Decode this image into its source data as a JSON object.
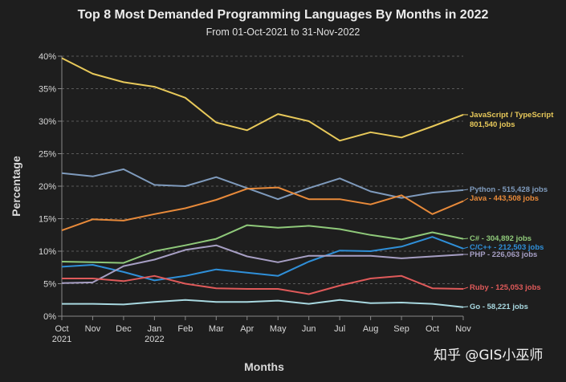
{
  "title": "Top 8 Most Demanded Programming Languages By Months in 2022",
  "subtitle": "From 01-Oct-2021 to 31-Nov-2022",
  "watermark": "知乎 @GIS小巫师",
  "chart_data": {
    "type": "line",
    "title": "Top 8 Most Demanded Programming Languages By Months in 2022",
    "subtitle": "From 01-Oct-2021 to 31-Nov-2022",
    "xlabel": "Months",
    "ylabel": "Percentage",
    "ylim": [
      0,
      40
    ],
    "yticks": [
      "0%",
      "5%",
      "10%",
      "15%",
      "20%",
      "25%",
      "30%",
      "35%",
      "40%"
    ],
    "ytick_values": [
      0,
      5,
      10,
      15,
      20,
      25,
      30,
      35,
      40
    ],
    "categories": [
      "Oct",
      "Nov",
      "Dec",
      "Jan",
      "Feb",
      "Mar",
      "Apr",
      "May",
      "Jun",
      "Jul",
      "Aug",
      "Sep",
      "Oct",
      "Nov"
    ],
    "category_sublabels": [
      "2021",
      "",
      "",
      "2022",
      "",
      "",
      "",
      "",
      "",
      "",
      "",
      "",
      "",
      ""
    ],
    "grid": true,
    "legend": "end-of-line labels (right)",
    "series": [
      {
        "name": "JavaScript / TypeScript",
        "jobs": "801,540 jobs",
        "color": "#e8c95a",
        "values": [
          39.7,
          37.3,
          36.0,
          35.3,
          33.6,
          29.8,
          28.6,
          31.1,
          30.0,
          27.0,
          28.3,
          27.5,
          29.2,
          31.0
        ]
      },
      {
        "name": "Python",
        "jobs": "515,428 jobs",
        "color": "#7f9bbd",
        "values": [
          22.0,
          21.5,
          22.6,
          20.2,
          20.0,
          21.4,
          19.7,
          18.0,
          19.7,
          21.2,
          19.2,
          18.2,
          19.0,
          19.4
        ]
      },
      {
        "name": "Java",
        "jobs": "443,508 jobs",
        "color": "#e88a3a",
        "values": [
          13.2,
          14.9,
          14.7,
          15.7,
          16.6,
          17.9,
          19.6,
          19.8,
          18.0,
          18.0,
          17.2,
          18.6,
          15.7,
          17.7
        ]
      },
      {
        "name": "C#",
        "jobs": "304,892 jobs",
        "color": "#8fc97a",
        "values": [
          8.4,
          8.3,
          8.2,
          10.0,
          10.9,
          11.9,
          14.0,
          13.6,
          13.9,
          13.4,
          12.5,
          11.8,
          12.9,
          11.9
        ]
      },
      {
        "name": "C/C++",
        "jobs": "212,503 jobs",
        "color": "#2f8fd8",
        "values": [
          7.6,
          7.9,
          6.8,
          5.5,
          6.2,
          7.2,
          6.7,
          6.2,
          8.4,
          10.1,
          10.0,
          10.7,
          12.2,
          10.4
        ]
      },
      {
        "name": "PHP",
        "jobs": "226,063 jobs",
        "color": "#a79fc4",
        "values": [
          5.1,
          5.2,
          7.7,
          8.7,
          10.2,
          10.9,
          9.2,
          8.3,
          9.3,
          9.3,
          9.3,
          8.9,
          9.2,
          9.5
        ]
      },
      {
        "name": "Ruby",
        "jobs": "125,053 jobs",
        "color": "#e05a5a",
        "values": [
          5.8,
          5.8,
          5.4,
          6.2,
          5.0,
          4.3,
          4.2,
          4.2,
          3.4,
          4.7,
          5.8,
          6.2,
          4.3,
          4.2
        ]
      },
      {
        "name": "Go",
        "jobs": "58,221 jobs",
        "color": "#a8d8e0",
        "values": [
          1.9,
          1.9,
          1.8,
          2.2,
          2.5,
          2.2,
          2.2,
          2.4,
          1.9,
          2.5,
          2.0,
          2.1,
          1.9,
          1.4
        ]
      }
    ]
  }
}
